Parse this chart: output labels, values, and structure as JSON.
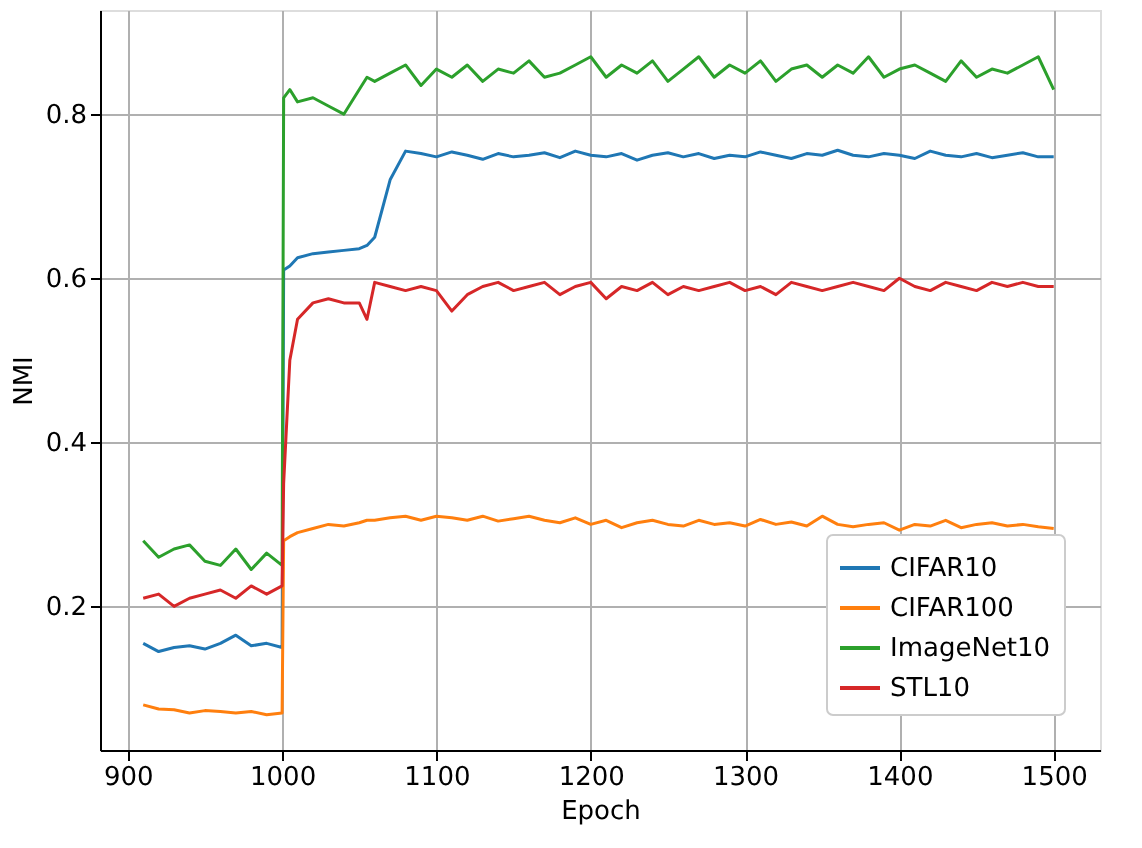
{
  "chart_data": {
    "type": "line",
    "xlabel": "Epoch",
    "ylabel": "NMI",
    "x": [
      910,
      920,
      930,
      940,
      950,
      960,
      970,
      980,
      990,
      1000,
      1001,
      1005,
      1010,
      1020,
      1030,
      1040,
      1050,
      1055,
      1060,
      1070,
      1080,
      1090,
      1100,
      1110,
      1120,
      1130,
      1140,
      1150,
      1160,
      1170,
      1180,
      1190,
      1200,
      1210,
      1220,
      1230,
      1240,
      1250,
      1260,
      1270,
      1280,
      1290,
      1300,
      1310,
      1320,
      1330,
      1340,
      1350,
      1360,
      1370,
      1380,
      1390,
      1400,
      1410,
      1420,
      1430,
      1440,
      1450,
      1460,
      1470,
      1480,
      1490,
      1500
    ],
    "series": [
      {
        "name": "CIFAR10",
        "color": "#1f77b4",
        "values": [
          0.155,
          0.145,
          0.15,
          0.152,
          0.148,
          0.155,
          0.165,
          0.152,
          0.155,
          0.15,
          0.61,
          0.615,
          0.625,
          0.63,
          0.632,
          0.634,
          0.636,
          0.64,
          0.65,
          0.72,
          0.755,
          0.752,
          0.748,
          0.754,
          0.75,
          0.745,
          0.752,
          0.748,
          0.75,
          0.753,
          0.747,
          0.755,
          0.75,
          0.748,
          0.752,
          0.744,
          0.75,
          0.753,
          0.748,
          0.752,
          0.746,
          0.75,
          0.748,
          0.754,
          0.75,
          0.746,
          0.752,
          0.75,
          0.756,
          0.75,
          0.748,
          0.752,
          0.75,
          0.746,
          0.755,
          0.75,
          0.748,
          0.752,
          0.747,
          0.75,
          0.753,
          0.748,
          0.748
        ]
      },
      {
        "name": "CIFAR100",
        "color": "#ff7f0e",
        "values": [
          0.08,
          0.075,
          0.074,
          0.07,
          0.073,
          0.072,
          0.07,
          0.072,
          0.068,
          0.07,
          0.28,
          0.285,
          0.29,
          0.295,
          0.3,
          0.298,
          0.302,
          0.305,
          0.305,
          0.308,
          0.31,
          0.305,
          0.31,
          0.308,
          0.305,
          0.31,
          0.304,
          0.307,
          0.31,
          0.305,
          0.302,
          0.308,
          0.3,
          0.305,
          0.296,
          0.302,
          0.305,
          0.3,
          0.298,
          0.305,
          0.3,
          0.302,
          0.298,
          0.306,
          0.3,
          0.303,
          0.298,
          0.31,
          0.3,
          0.297,
          0.3,
          0.302,
          0.293,
          0.3,
          0.298,
          0.305,
          0.296,
          0.3,
          0.302,
          0.298,
          0.3,
          0.297,
          0.295
        ]
      },
      {
        "name": "ImageNet10",
        "color": "#2ca02c",
        "values": [
          0.28,
          0.26,
          0.27,
          0.275,
          0.255,
          0.25,
          0.27,
          0.245,
          0.265,
          0.25,
          0.82,
          0.83,
          0.815,
          0.82,
          0.81,
          0.8,
          0.83,
          0.845,
          0.84,
          0.85,
          0.86,
          0.835,
          0.855,
          0.845,
          0.86,
          0.84,
          0.855,
          0.85,
          0.865,
          0.845,
          0.85,
          0.86,
          0.87,
          0.845,
          0.86,
          0.85,
          0.865,
          0.84,
          0.855,
          0.87,
          0.845,
          0.86,
          0.85,
          0.865,
          0.84,
          0.855,
          0.86,
          0.845,
          0.86,
          0.85,
          0.87,
          0.845,
          0.855,
          0.86,
          0.85,
          0.84,
          0.865,
          0.845,
          0.855,
          0.85,
          0.86,
          0.87,
          0.83
        ]
      },
      {
        "name": "STL10",
        "color": "#d62728",
        "values": [
          0.21,
          0.215,
          0.2,
          0.21,
          0.215,
          0.22,
          0.21,
          0.225,
          0.215,
          0.225,
          0.35,
          0.5,
          0.55,
          0.57,
          0.575,
          0.57,
          0.57,
          0.55,
          0.595,
          0.59,
          0.585,
          0.59,
          0.585,
          0.56,
          0.58,
          0.59,
          0.595,
          0.585,
          0.59,
          0.595,
          0.58,
          0.59,
          0.595,
          0.575,
          0.59,
          0.585,
          0.595,
          0.58,
          0.59,
          0.585,
          0.59,
          0.595,
          0.585,
          0.59,
          0.58,
          0.595,
          0.59,
          0.585,
          0.59,
          0.595,
          0.59,
          0.585,
          0.6,
          0.59,
          0.585,
          0.595,
          0.59,
          0.585,
          0.595,
          0.59,
          0.595,
          0.59,
          0.59
        ]
      }
    ],
    "xlim": [
      882,
      1530
    ],
    "ylim": [
      0.025,
      0.927
    ],
    "xticks": [
      900,
      1000,
      1100,
      1200,
      1300,
      1400,
      1500
    ],
    "yticks": [
      0.2,
      0.4,
      0.6,
      0.8
    ],
    "grid": true,
    "legend": "bottom right",
    "marker": "none",
    "line_style": "solid"
  }
}
